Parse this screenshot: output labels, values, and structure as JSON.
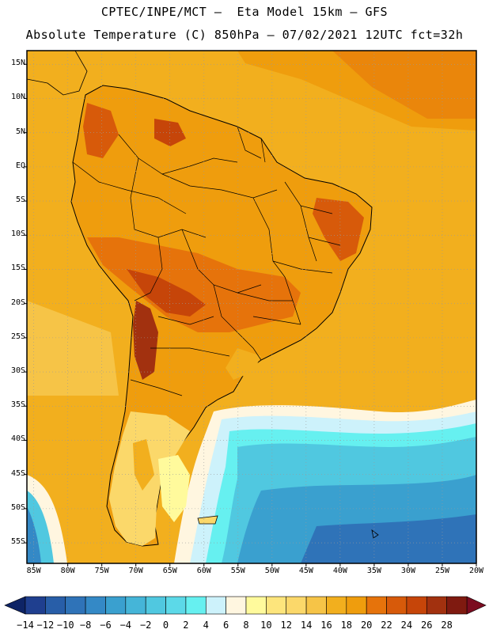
{
  "header": {
    "line1": "CPTEC/INPE/MCT –  Eta Model 15km – GFS",
    "line2": "Absolute Temperature (C) 850hPa – 07/02/2021 12UTC fct=32h"
  },
  "map": {
    "region": "South America",
    "lat_labels": [
      "15N",
      "10N",
      "5N",
      "EQ",
      "5S",
      "10S",
      "15S",
      "20S",
      "25S",
      "30S",
      "35S",
      "40S",
      "45S",
      "50S",
      "55S"
    ],
    "lon_labels": [
      "85W",
      "80W",
      "75W",
      "70W",
      "65W",
      "60W",
      "55W",
      "50W",
      "45W",
      "40W",
      "35W",
      "30W",
      "25W",
      "20W"
    ],
    "lat_range": [
      17,
      -58
    ],
    "lon_range": [
      -86,
      -20
    ]
  },
  "colorbar": {
    "labels": [
      "-14",
      "-12",
      "-10",
      "-8",
      "-6",
      "-4",
      "-2",
      "0",
      "2",
      "4",
      "6",
      "8",
      "10",
      "12",
      "14",
      "16",
      "18",
      "20",
      "22",
      "24",
      "26",
      "28"
    ],
    "colors": [
      "#1f3f8f",
      "#285ea8",
      "#2f73b8",
      "#3489c6",
      "#3aa0cf",
      "#45b5d8",
      "#50c8e0",
      "#5cd9e8",
      "#66f0f0",
      "#cdf2fb",
      "#fff6e0",
      "#fffa9c",
      "#fde57c",
      "#fbd86a",
      "#f6c447",
      "#f2af1e",
      "#ef9d0d",
      "#e6730b",
      "#d75a0a",
      "#c64509",
      "#a2310f",
      "#7f1a10"
    ],
    "under_color": "#0e2466",
    "over_color": "#7b0c20"
  }
}
